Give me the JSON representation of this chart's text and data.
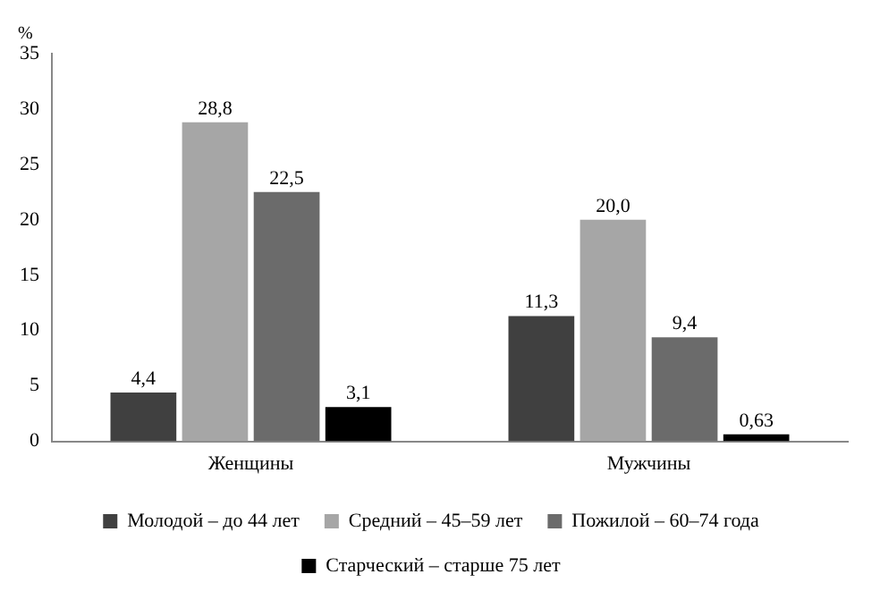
{
  "chart_data": {
    "type": "bar",
    "ylabel": "%",
    "categories": [
      "Женщины",
      "Мужчины"
    ],
    "series": [
      {
        "name": "Молодой – до 44 лет",
        "color": "#404040",
        "values": [
          4.4,
          11.3
        ],
        "value_labels": [
          "4,4",
          "11,3"
        ]
      },
      {
        "name": "Средний – 45–59 лет",
        "color": "#a6a6a6",
        "values": [
          28.8,
          20.0
        ],
        "value_labels": [
          "28,8",
          "20,0"
        ]
      },
      {
        "name": "Пожилой – 60–74 года",
        "color": "#6b6b6b",
        "values": [
          22.5,
          9.4
        ],
        "value_labels": [
          "22,5",
          "9,4"
        ]
      },
      {
        "name": "Старческий – старше 75 лет",
        "color": "#000000",
        "values": [
          3.1,
          0.63
        ],
        "value_labels": [
          "3,1",
          "0,63"
        ]
      }
    ],
    "ylim": [
      0,
      35
    ],
    "yticks": [
      0,
      5,
      10,
      15,
      20,
      25,
      30,
      35
    ],
    "grid": false,
    "legend": "bottom"
  }
}
